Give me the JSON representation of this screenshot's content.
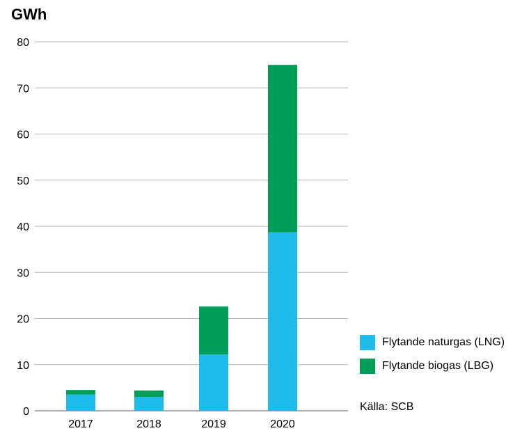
{
  "chart_data": {
    "type": "bar",
    "stacked": true,
    "unit_label": "GWh",
    "categories": [
      "2017",
      "2018",
      "2019",
      "2020"
    ],
    "series": [
      {
        "name": "Flytande naturgas (LNG)",
        "color": "#1fbbea",
        "values": [
          3.5,
          3.0,
          12.2,
          38.7
        ]
      },
      {
        "name": "Flytande biogas (LBG)",
        "color": "#009e59",
        "values": [
          1.0,
          1.4,
          10.4,
          36.3
        ]
      }
    ],
    "ylim": [
      0,
      80
    ],
    "yticks": [
      0,
      10,
      20,
      30,
      40,
      50,
      60,
      70,
      80
    ],
    "grid": true,
    "legend_position": "right",
    "source": "Källa: SCB"
  }
}
